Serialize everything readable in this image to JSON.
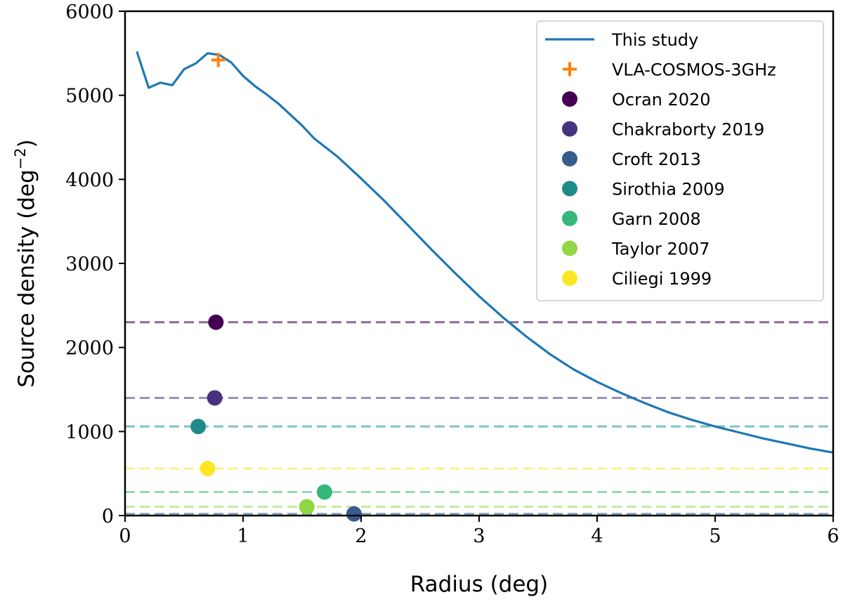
{
  "chart_data": {
    "type": "line",
    "xlabel": "Radius (deg)",
    "ylabel_main": "Source density (deg",
    "ylabel_sup": "−2",
    "ylabel_close": ")",
    "xlim": [
      0,
      6
    ],
    "ylim": [
      0,
      6000
    ],
    "xticks": [
      0,
      1,
      2,
      3,
      4,
      5,
      6
    ],
    "yticks": [
      0,
      1000,
      2000,
      3000,
      4000,
      5000,
      6000
    ],
    "grid": false,
    "legend_position": "top-right",
    "series": [
      {
        "name": "This study",
        "kind": "line",
        "color": "#1f77b4",
        "x": [
          0.1,
          0.2,
          0.3,
          0.4,
          0.5,
          0.6,
          0.7,
          0.8,
          0.9,
          1.0,
          1.1,
          1.2,
          1.3,
          1.4,
          1.5,
          1.6,
          1.8,
          2.0,
          2.2,
          2.4,
          2.6,
          2.8,
          3.0,
          3.2,
          3.4,
          3.6,
          3.8,
          4.0,
          4.2,
          4.4,
          4.6,
          4.8,
          5.0,
          5.2,
          5.4,
          5.6,
          5.8,
          6.0
        ],
        "y": [
          5520,
          5090,
          5150,
          5120,
          5310,
          5380,
          5500,
          5480,
          5390,
          5230,
          5110,
          5010,
          4900,
          4770,
          4640,
          4490,
          4270,
          4010,
          3740,
          3450,
          3160,
          2880,
          2610,
          2360,
          2130,
          1920,
          1740,
          1590,
          1460,
          1340,
          1230,
          1140,
          1060,
          990,
          920,
          860,
          800,
          750
        ]
      },
      {
        "name": "VLA-COSMOS-3GHz",
        "kind": "marker-plus",
        "color": "#ff7f0e",
        "x": 0.79,
        "y": 5420
      },
      {
        "name": "Ocran 2020",
        "kind": "marker-dot",
        "color": "#440154",
        "line_color": "#8a6a9b",
        "x": 0.77,
        "y": 2300
      },
      {
        "name": "Chakraborty 2019",
        "kind": "marker-dot",
        "color": "#46327e",
        "line_color": "#9990bd",
        "x": 0.76,
        "y": 1400
      },
      {
        "name": "Croft 2013",
        "kind": "marker-dot",
        "color": "#365c8d",
        "line_color": "#8aa2c0",
        "x": 1.94,
        "y": 20
      },
      {
        "name": "Sirothia 2009",
        "kind": "marker-dot",
        "color": "#1f8a8a",
        "line_color": "#7fc4c4",
        "x": 0.62,
        "y": 1060
      },
      {
        "name": "Garn 2008",
        "kind": "marker-dot",
        "color": "#35b779",
        "line_color": "#97d9b6",
        "x": 1.69,
        "y": 280
      },
      {
        "name": "Taylor 2007",
        "kind": "marker-dot",
        "color": "#8fd744",
        "line_color": "#c5ea9d",
        "x": 1.54,
        "y": 105
      },
      {
        "name": "Ciliegi 1999",
        "kind": "marker-dot",
        "color": "#fde725",
        "line_color": "#fdf08c",
        "x": 0.7,
        "y": 560
      }
    ]
  }
}
